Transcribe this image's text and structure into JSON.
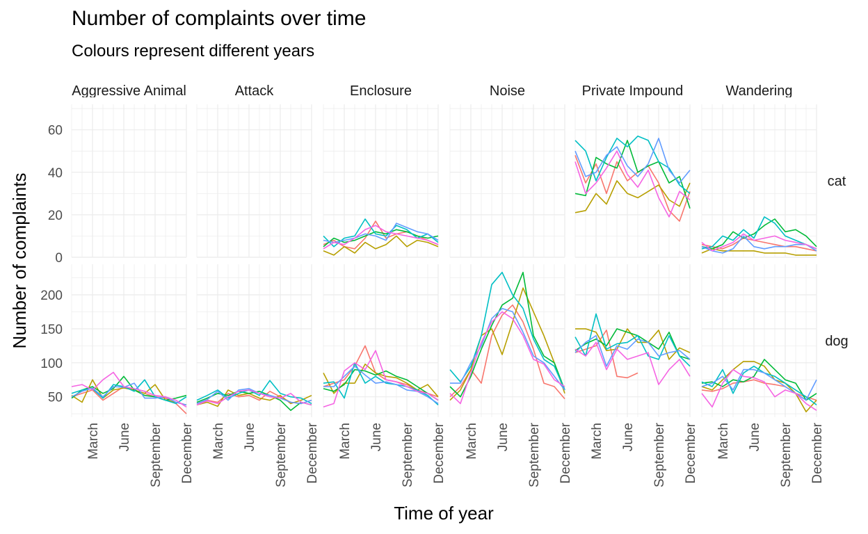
{
  "chart_data": {
    "type": "line",
    "title": "Number of complaints over time",
    "subtitle": "Colours represent different years",
    "xlabel": "Time of year",
    "ylabel": "Number of complaints",
    "x_ticks": [
      "March",
      "June",
      "September",
      "December"
    ],
    "x_tick_months": [
      3,
      6,
      9,
      12
    ],
    "xlim": [
      1,
      12
    ],
    "facet_columns": [
      "Aggressive Animal",
      "Attack",
      "Enclosure",
      "Noise",
      "Private Impound",
      "Wandering"
    ],
    "facet_rows": [
      "cat",
      "dog"
    ],
    "rows": {
      "cat": {
        "ylim": [
          0,
          72
        ],
        "y_ticks": [
          0,
          20,
          40,
          60
        ]
      },
      "dog": {
        "ylim": [
          20,
          245
        ],
        "y_ticks": [
          50,
          100,
          150,
          200
        ]
      }
    },
    "grid": true,
    "legend": "none",
    "series_colors": [
      "#F8766D",
      "#B79F00",
      "#00BA38",
      "#00BFC4",
      "#619CFF",
      "#F564E3"
    ],
    "panels": [
      {
        "column": "Aggressive Animal",
        "row": "cat",
        "series": []
      },
      {
        "column": "Attack",
        "row": "cat",
        "series": []
      },
      {
        "column": "Enclosure",
        "row": "cat",
        "series": [
          {
            "color": "#F8766D",
            "values": [
              6,
              8,
              5,
              4,
              9,
              17,
              9,
              11,
              12,
              10,
              8,
              6
            ]
          },
          {
            "color": "#B79F00",
            "values": [
              3,
              1,
              5,
              2,
              7,
              4,
              6,
              10,
              5,
              8,
              7,
              5
            ]
          },
          {
            "color": "#00BA38",
            "values": [
              5,
              9,
              7,
              8,
              10,
              12,
              11,
              13,
              12,
              10,
              9,
              10
            ]
          },
          {
            "color": "#00BFC4",
            "values": [
              10,
              5,
              9,
              10,
              18,
              11,
              10,
              15,
              13,
              9,
              11,
              7
            ]
          },
          {
            "color": "#619CFF",
            "values": [
              8,
              7,
              8,
              9,
              11,
              10,
              8,
              16,
              14,
              12,
              11,
              8
            ]
          },
          {
            "color": "#F564E3",
            "values": [
              4,
              7,
              6,
              9,
              13,
              15,
              12,
              11,
              10,
              9,
              8,
              6
            ]
          }
        ]
      },
      {
        "column": "Noise",
        "row": "cat",
        "series": []
      },
      {
        "column": "Private Impound",
        "row": "cat",
        "series": [
          {
            "color": "#F8766D",
            "values": [
              48,
              35,
              44,
              30,
              45,
              36,
              40,
              43,
              35,
              22,
              17,
              31
            ]
          },
          {
            "color": "#B79F00",
            "values": [
              21,
              22,
              30,
              25,
              36,
              30,
              28,
              31,
              34,
              27,
              24,
              35
            ]
          },
          {
            "color": "#00BA38",
            "values": [
              30,
              29,
              47,
              44,
              42,
              55,
              40,
              43,
              45,
              35,
              38,
              23
            ]
          },
          {
            "color": "#00BFC4",
            "values": [
              55,
              50,
              36,
              47,
              56,
              52,
              57,
              55,
              45,
              42,
              34,
              30
            ]
          },
          {
            "color": "#619CFF",
            "values": [
              50,
              38,
              40,
              48,
              52,
              43,
              38,
              44,
              56,
              41,
              35,
              41
            ]
          },
          {
            "color": "#F564E3",
            "values": [
              45,
              30,
              35,
              42,
              50,
              39,
              33,
              41,
              28,
              19,
              31,
              27
            ]
          }
        ]
      },
      {
        "column": "Wandering",
        "row": "cat",
        "series": [
          {
            "color": "#F8766D",
            "values": [
              6,
              5,
              4,
              6,
              9,
              8,
              7,
              6,
              5,
              5,
              4,
              3
            ]
          },
          {
            "color": "#B79F00",
            "values": [
              2,
              4,
              3,
              3,
              3,
              3,
              2,
              2,
              2,
              1,
              1,
              1
            ]
          },
          {
            "color": "#00BA38",
            "values": [
              5,
              4,
              6,
              12,
              9,
              11,
              15,
              18,
              12,
              13,
              10,
              5
            ]
          },
          {
            "color": "#00BFC4",
            "values": [
              4,
              5,
              10,
              8,
              13,
              9,
              19,
              16,
              10,
              8,
              6,
              4
            ]
          },
          {
            "color": "#619CFF",
            "values": [
              5,
              3,
              2,
              4,
              10,
              5,
              4,
              5,
              5,
              6,
              6,
              3
            ]
          },
          {
            "color": "#F564E3",
            "values": [
              7,
              3,
              5,
              7,
              11,
              8,
              9,
              10,
              8,
              7,
              6,
              4
            ]
          }
        ]
      },
      {
        "column": "Aggressive Animal",
        "row": "dog",
        "series": [
          {
            "color": "#F8766D",
            "values": [
              50,
              55,
              60,
              45,
              55,
              65,
              60,
              55,
              50,
              48,
              40,
              25
            ]
          },
          {
            "color": "#B79F00",
            "values": [
              52,
              42,
              75,
              48,
              60,
              63,
              60,
              55,
              68,
              45,
              42,
              38
            ]
          },
          {
            "color": "#00BA38",
            "values": [
              48,
              60,
              65,
              55,
              62,
              80,
              60,
              52,
              50,
              45,
              48,
              52
            ]
          },
          {
            "color": "#00BFC4",
            "values": [
              55,
              60,
              62,
              48,
              68,
              65,
              58,
              75,
              50,
              45,
              40,
              50
            ]
          },
          {
            "color": "#619CFF",
            "values": [
              50,
              58,
              63,
              50,
              65,
              64,
              70,
              48,
              48,
              50,
              42,
              38
            ]
          },
          {
            "color": "#F564E3",
            "values": [
              65,
              68,
              60,
              75,
              86,
              65,
              62,
              58,
              52,
              50,
              45,
              35
            ]
          }
        ]
      },
      {
        "column": "Attack",
        "row": "dog",
        "series": [
          {
            "color": "#F8766D",
            "values": [
              40,
              45,
              42,
              55,
              50,
              52,
              45,
              58,
              50,
              42,
              40,
              45
            ]
          },
          {
            "color": "#B79F00",
            "values": [
              38,
              42,
              36,
              60,
              52,
              55,
              48,
              45,
              52,
              40,
              45,
              52
            ]
          },
          {
            "color": "#00BA38",
            "values": [
              42,
              48,
              55,
              52,
              58,
              55,
              58,
              52,
              45,
              30,
              42,
              38
            ]
          },
          {
            "color": "#00BFC4",
            "values": [
              45,
              52,
              60,
              48,
              55,
              60,
              52,
              74,
              55,
              50,
              48,
              40
            ]
          },
          {
            "color": "#619CFF",
            "values": [
              40,
              46,
              58,
              45,
              60,
              62,
              55,
              52,
              48,
              42,
              40,
              45
            ]
          },
          {
            "color": "#F564E3",
            "values": [
              38,
              44,
              40,
              50,
              58,
              60,
              55,
              50,
              48,
              55,
              42,
              38
            ]
          }
        ]
      },
      {
        "column": "Enclosure",
        "row": "dog",
        "series": [
          {
            "color": "#F8766D",
            "values": [
              65,
              70,
              75,
              95,
              125,
              85,
              75,
              72,
              68,
              60,
              55,
              50
            ]
          },
          {
            "color": "#B79F00",
            "values": [
              85,
              55,
              70,
              70,
              98,
              85,
              80,
              78,
              70,
              60,
              68,
              50
            ]
          },
          {
            "color": "#00BA38",
            "values": [
              62,
              58,
              68,
              90,
              88,
              82,
              88,
              80,
              75,
              65,
              55,
              45
            ]
          },
          {
            "color": "#00BFC4",
            "values": [
              70,
              72,
              48,
              100,
              70,
              80,
              70,
              68,
              65,
              60,
              52,
              38
            ]
          },
          {
            "color": "#619CFF",
            "values": [
              65,
              65,
              80,
              95,
              82,
              70,
              72,
              68,
              60,
              58,
              50,
              40
            ]
          },
          {
            "color": "#F564E3",
            "values": [
              35,
              40,
              88,
              100,
              90,
              118,
              75,
              72,
              65,
              58,
              55,
              45
            ]
          }
        ]
      },
      {
        "column": "Noise",
        "row": "dog",
        "series": [
          {
            "color": "#F8766D",
            "values": [
              50,
              65,
              90,
              70,
              140,
              170,
              185,
              160,
              120,
              70,
              65,
              47
            ]
          },
          {
            "color": "#B79F00",
            "values": [
              45,
              60,
              90,
              140,
              150,
              112,
              160,
              210,
              175,
              140,
              100,
              55
            ]
          },
          {
            "color": "#00BA38",
            "values": [
              65,
              50,
              80,
              120,
              155,
              185,
              195,
              233,
              140,
              110,
              100,
              60
            ]
          },
          {
            "color": "#00BFC4",
            "values": [
              90,
              72,
              95,
              140,
              215,
              233,
              200,
              180,
              135,
              105,
              95,
              60
            ]
          },
          {
            "color": "#619CFF",
            "values": [
              70,
              70,
              100,
              125,
              165,
              180,
              175,
              145,
              110,
              100,
              80,
              60
            ]
          },
          {
            "color": "#F564E3",
            "values": [
              55,
              40,
              85,
              130,
              160,
              175,
              165,
              140,
              105,
              98,
              75,
              65
            ]
          }
        ]
      },
      {
        "column": "Private Impound",
        "row": "dog",
        "series": [
          {
            "color": "#F8766D",
            "values": [
              115,
              120,
              125,
              148,
              80,
              78,
              85,
              null,
              null,
              null,
              null,
              null
            ]
          },
          {
            "color": "#B79F00",
            "values": [
              150,
              150,
              145,
              118,
              120,
              150,
              130,
              130,
              148,
              105,
              122,
              115
            ]
          },
          {
            "color": "#00BA38",
            "values": [
              118,
              128,
              135,
              125,
              150,
              145,
              140,
              130,
              120,
              145,
              110,
              105
            ]
          },
          {
            "color": "#00BFC4",
            "values": [
              138,
              110,
              172,
              120,
              128,
              130,
              140,
              110,
              105,
              140,
              110,
              95
            ]
          },
          {
            "color": "#619CFF",
            "values": [
              115,
              130,
              140,
              95,
              125,
              120,
              135,
              130,
              110,
              115,
              118,
              105
            ]
          },
          {
            "color": "#F564E3",
            "values": [
              120,
              110,
              130,
              90,
              120,
              105,
              110,
              115,
              68,
              90,
              105,
              80
            ]
          }
        ]
      },
      {
        "column": "Wandering",
        "row": "dog",
        "series": [
          {
            "color": "#F8766D",
            "values": [
              60,
              58,
              62,
              70,
              72,
              75,
              70,
              68,
              65,
              55,
              50,
              45
            ]
          },
          {
            "color": "#B79F00",
            "values": [
              65,
              60,
              75,
              90,
              102,
              102,
              95,
              75,
              70,
              55,
              28,
              45
            ]
          },
          {
            "color": "#00BA38",
            "values": [
              70,
              72,
              65,
              75,
              72,
              80,
              105,
              90,
              75,
              70,
              45,
              55
            ]
          },
          {
            "color": "#00BFC4",
            "values": [
              72,
              65,
              90,
              55,
              85,
              95,
              85,
              80,
              70,
              60,
              50,
              38
            ]
          },
          {
            "color": "#619CFF",
            "values": [
              65,
              70,
              80,
              60,
              90,
              90,
              85,
              75,
              65,
              55,
              45,
              75
            ]
          },
          {
            "color": "#F564E3",
            "values": [
              55,
              35,
              70,
              90,
              80,
              78,
              72,
              50,
              60,
              55,
              40,
              30
            ]
          }
        ]
      }
    ]
  }
}
